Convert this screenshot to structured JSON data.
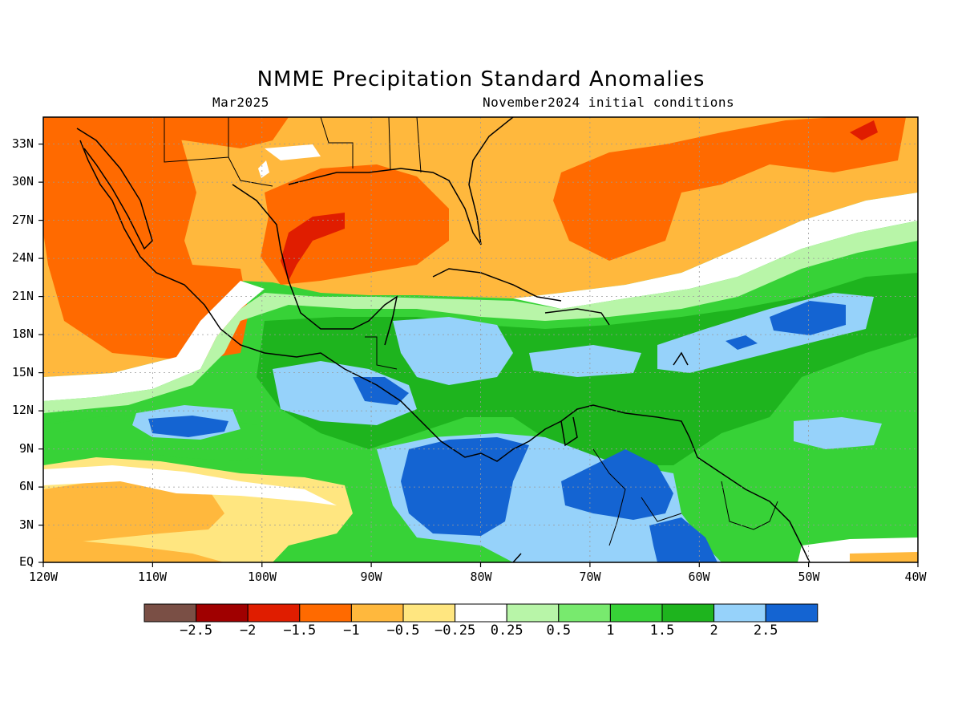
{
  "title": "NMME Precipitation Standard Anomalies",
  "subtitle_left": "Mar2025",
  "subtitle_right": "November2024 initial conditions",
  "map": {
    "lon_range": [
      -120,
      -40
    ],
    "lat_range": [
      0,
      35
    ],
    "y_ticks": [
      "EQ",
      "3N",
      "6N",
      "9N",
      "12N",
      "15N",
      "18N",
      "21N",
      "24N",
      "27N",
      "30N",
      "33N"
    ],
    "x_ticks": [
      "120W",
      "110W",
      "100W",
      "90W",
      "80W",
      "70W",
      "60W",
      "50W",
      "40W"
    ],
    "gridlines": true
  },
  "colorbar": {
    "colors": [
      "#7a4f45",
      "#a00000",
      "#e01d00",
      "#ff6a00",
      "#ffb83d",
      "#ffe680",
      "#ffffff",
      "#b8f5a8",
      "#78ea6e",
      "#37d237",
      "#1eb41e",
      "#96d2fa",
      "#1464d2"
    ],
    "labels": [
      "−2.5",
      "−2",
      "−1.5",
      "−1",
      "−0.5",
      "−0.25",
      "0.25",
      "0.5",
      "1",
      "1.5",
      "2",
      "2.5"
    ]
  }
}
